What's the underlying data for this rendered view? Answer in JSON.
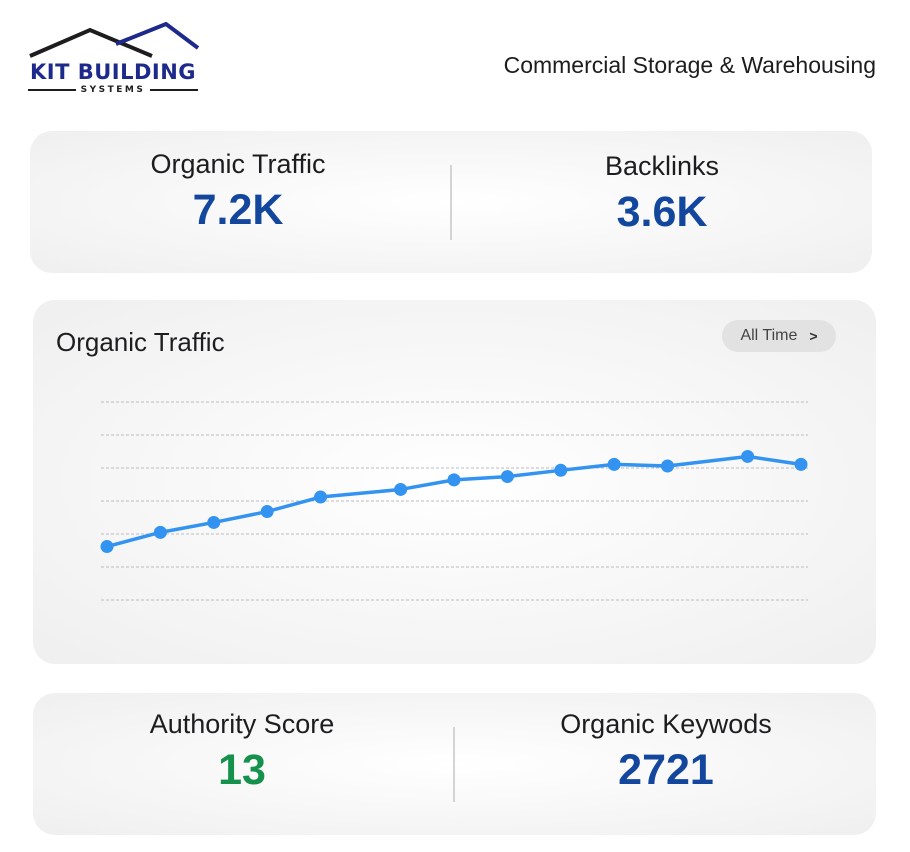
{
  "brand": {
    "name": "KIT BUILDING",
    "tagline": "SYSTEMS",
    "color": "#1d2a8c"
  },
  "header": {
    "subject": "Commercial Storage & Warehousing"
  },
  "summary_top": {
    "organic_traffic": {
      "label": "Organic Traffic",
      "value": "7.2K"
    },
    "backlinks": {
      "label": "Backlinks",
      "value": "3.6K"
    }
  },
  "traffic_chart": {
    "title": "Organic Traffic",
    "range_label": "All Time",
    "range_icon": "chevron-right-icon"
  },
  "summary_bottom": {
    "authority_score": {
      "label": "Authority Score",
      "value": "13"
    },
    "organic_keywords": {
      "label": "Organic Keywods",
      "value": "2721"
    }
  },
  "colors": {
    "value_blue": "#13479e",
    "value_green": "#15914b",
    "line": "#3393f0"
  },
  "chart_data": {
    "type": "line",
    "title": "Organic Traffic",
    "xlabel": "",
    "ylabel": "",
    "grid": true,
    "gridlines": 7,
    "ylim": [
      0,
      6
    ],
    "series": [
      {
        "values": [
          1.62,
          2.05,
          2.35,
          2.68,
          3.12,
          3.35,
          3.64,
          3.74,
          3.93,
          4.11,
          4.06,
          4.35,
          4.11
        ]
      }
    ],
    "x": [
      0,
      2,
      4,
      6,
      8,
      11,
      13,
      15,
      17,
      19,
      21,
      24,
      26
    ]
  }
}
